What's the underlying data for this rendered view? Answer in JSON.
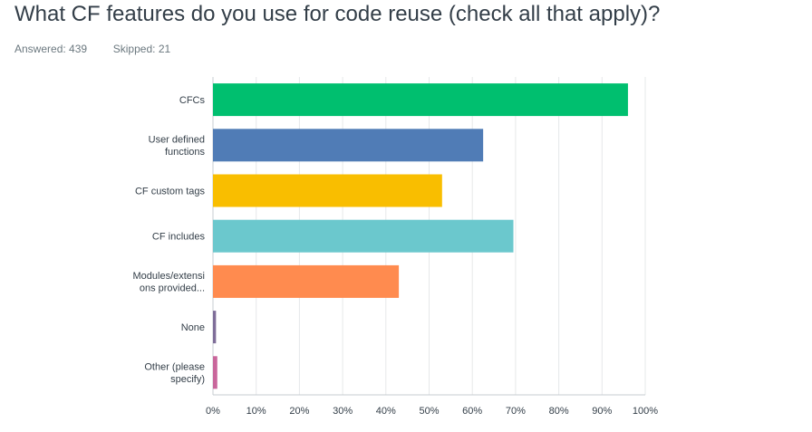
{
  "question": {
    "title": "What CF features do you use for code reuse (check all that apply)?",
    "answered_label": "Answered:",
    "answered_count": "439",
    "skipped_label": "Skipped:",
    "skipped_count": "21"
  },
  "chart_data": {
    "type": "bar",
    "orientation": "horizontal",
    "categories": [
      [
        "CFCs"
      ],
      [
        "User defined",
        "functions"
      ],
      [
        "CF custom tags"
      ],
      [
        "CF includes"
      ],
      [
        "Modules/extensi",
        "ons provided..."
      ],
      [
        "None"
      ],
      [
        "Other (please",
        "specify)"
      ]
    ],
    "values": [
      96,
      62.5,
      53,
      69.5,
      43,
      0.7,
      1
    ],
    "colors": [
      "#00bf6f",
      "#507cb6",
      "#f9be00",
      "#6bc8cd",
      "#ff8b4f",
      "#7f6d99",
      "#c9669b"
    ],
    "x_ticks": [
      "0%",
      "10%",
      "20%",
      "30%",
      "40%",
      "50%",
      "60%",
      "70%",
      "80%",
      "90%",
      "100%"
    ],
    "xlim": [
      0,
      100
    ],
    "unit": "%",
    "grid": true,
    "legend": "none"
  }
}
